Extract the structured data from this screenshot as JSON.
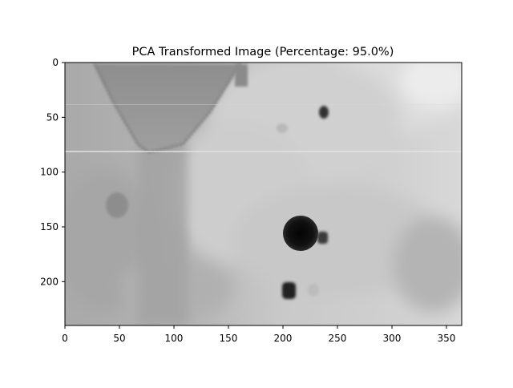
{
  "figure": {
    "title": "PCA Transformed Image (Percentage: 95.0%)"
  },
  "image_axes": {
    "x_ticks": [
      0,
      50,
      100,
      150,
      200,
      250,
      300,
      350
    ],
    "y_ticks": [
      0,
      50,
      100,
      150,
      200
    ],
    "x_range": [
      0,
      364
    ],
    "y_range": [
      0,
      240
    ],
    "colormap": "gray"
  }
}
